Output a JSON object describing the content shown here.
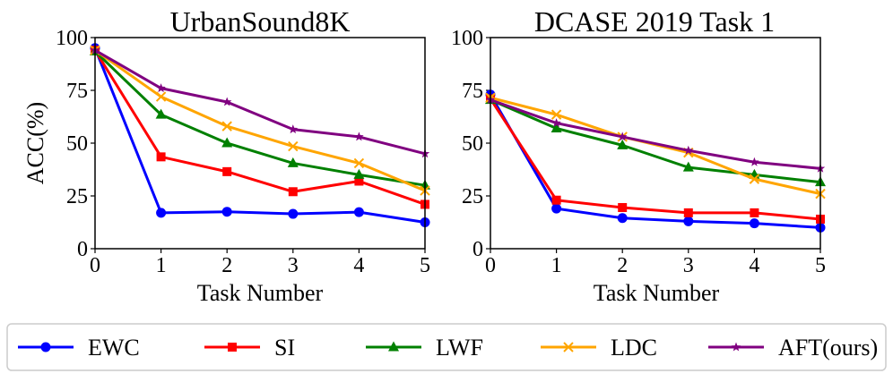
{
  "chart_data": [
    {
      "type": "line",
      "title": "UrbanSound8K",
      "xlabel": "Task Number",
      "ylabel": "ACC(%)",
      "x": [
        0,
        1,
        2,
        3,
        4,
        5
      ],
      "xlim": [
        0,
        5
      ],
      "ylim": [
        0,
        100
      ],
      "xticks": [
        "0",
        "1",
        "2",
        "3",
        "4",
        "5"
      ],
      "yticks": [
        "0",
        "25",
        "50",
        "75",
        "100"
      ],
      "grid": false,
      "series": [
        {
          "name": "EWC",
          "color": "#0000ff",
          "marker": "circle",
          "values": [
            95,
            17,
            17.5,
            16.5,
            17.3,
            12.5
          ]
        },
        {
          "name": "SI",
          "color": "#ff0000",
          "marker": "square",
          "values": [
            94,
            43.5,
            36.5,
            27,
            32,
            21
          ]
        },
        {
          "name": "LWF",
          "color": "#008000",
          "marker": "triangle",
          "values": [
            93.5,
            63.5,
            50,
            40.5,
            35,
            30
          ]
        },
        {
          "name": "LDC",
          "color": "#ffa500",
          "marker": "x",
          "values": [
            94,
            72,
            58,
            48.5,
            40.5,
            27.5
          ]
        },
        {
          "name": "AFT(ours)",
          "color": "#800080",
          "marker": "star",
          "values": [
            94,
            76,
            69.5,
            56.5,
            53,
            45
          ]
        }
      ]
    },
    {
      "type": "line",
      "title": "DCASE 2019 Task 1",
      "xlabel": "Task Number",
      "ylabel": "",
      "x": [
        0,
        1,
        2,
        3,
        4,
        5
      ],
      "xlim": [
        0,
        5
      ],
      "ylim": [
        0,
        100
      ],
      "xticks": [
        "0",
        "1",
        "2",
        "3",
        "4",
        "5"
      ],
      "yticks": [
        "0",
        "25",
        "50",
        "75",
        "100"
      ],
      "grid": false,
      "series": [
        {
          "name": "EWC",
          "color": "#0000ff",
          "marker": "circle",
          "values": [
            73,
            19,
            14.5,
            13,
            12,
            10
          ]
        },
        {
          "name": "SI",
          "color": "#ff0000",
          "marker": "square",
          "values": [
            71,
            23,
            19.5,
            17,
            17,
            14
          ]
        },
        {
          "name": "LWF",
          "color": "#008000",
          "marker": "triangle",
          "values": [
            70.5,
            57,
            49,
            38.5,
            35,
            31.5
          ]
        },
        {
          "name": "LDC",
          "color": "#ffa500",
          "marker": "x",
          "values": [
            71.5,
            63.5,
            53,
            45.5,
            33,
            26
          ]
        },
        {
          "name": "AFT(ours)",
          "color": "#800080",
          "marker": "star",
          "values": [
            70.5,
            59.5,
            53,
            46.5,
            41,
            38
          ]
        }
      ]
    }
  ],
  "legend": {
    "placement": "bottom",
    "entries": [
      "EWC",
      "SI",
      "LWF",
      "LDC",
      "AFT(ours)"
    ]
  }
}
